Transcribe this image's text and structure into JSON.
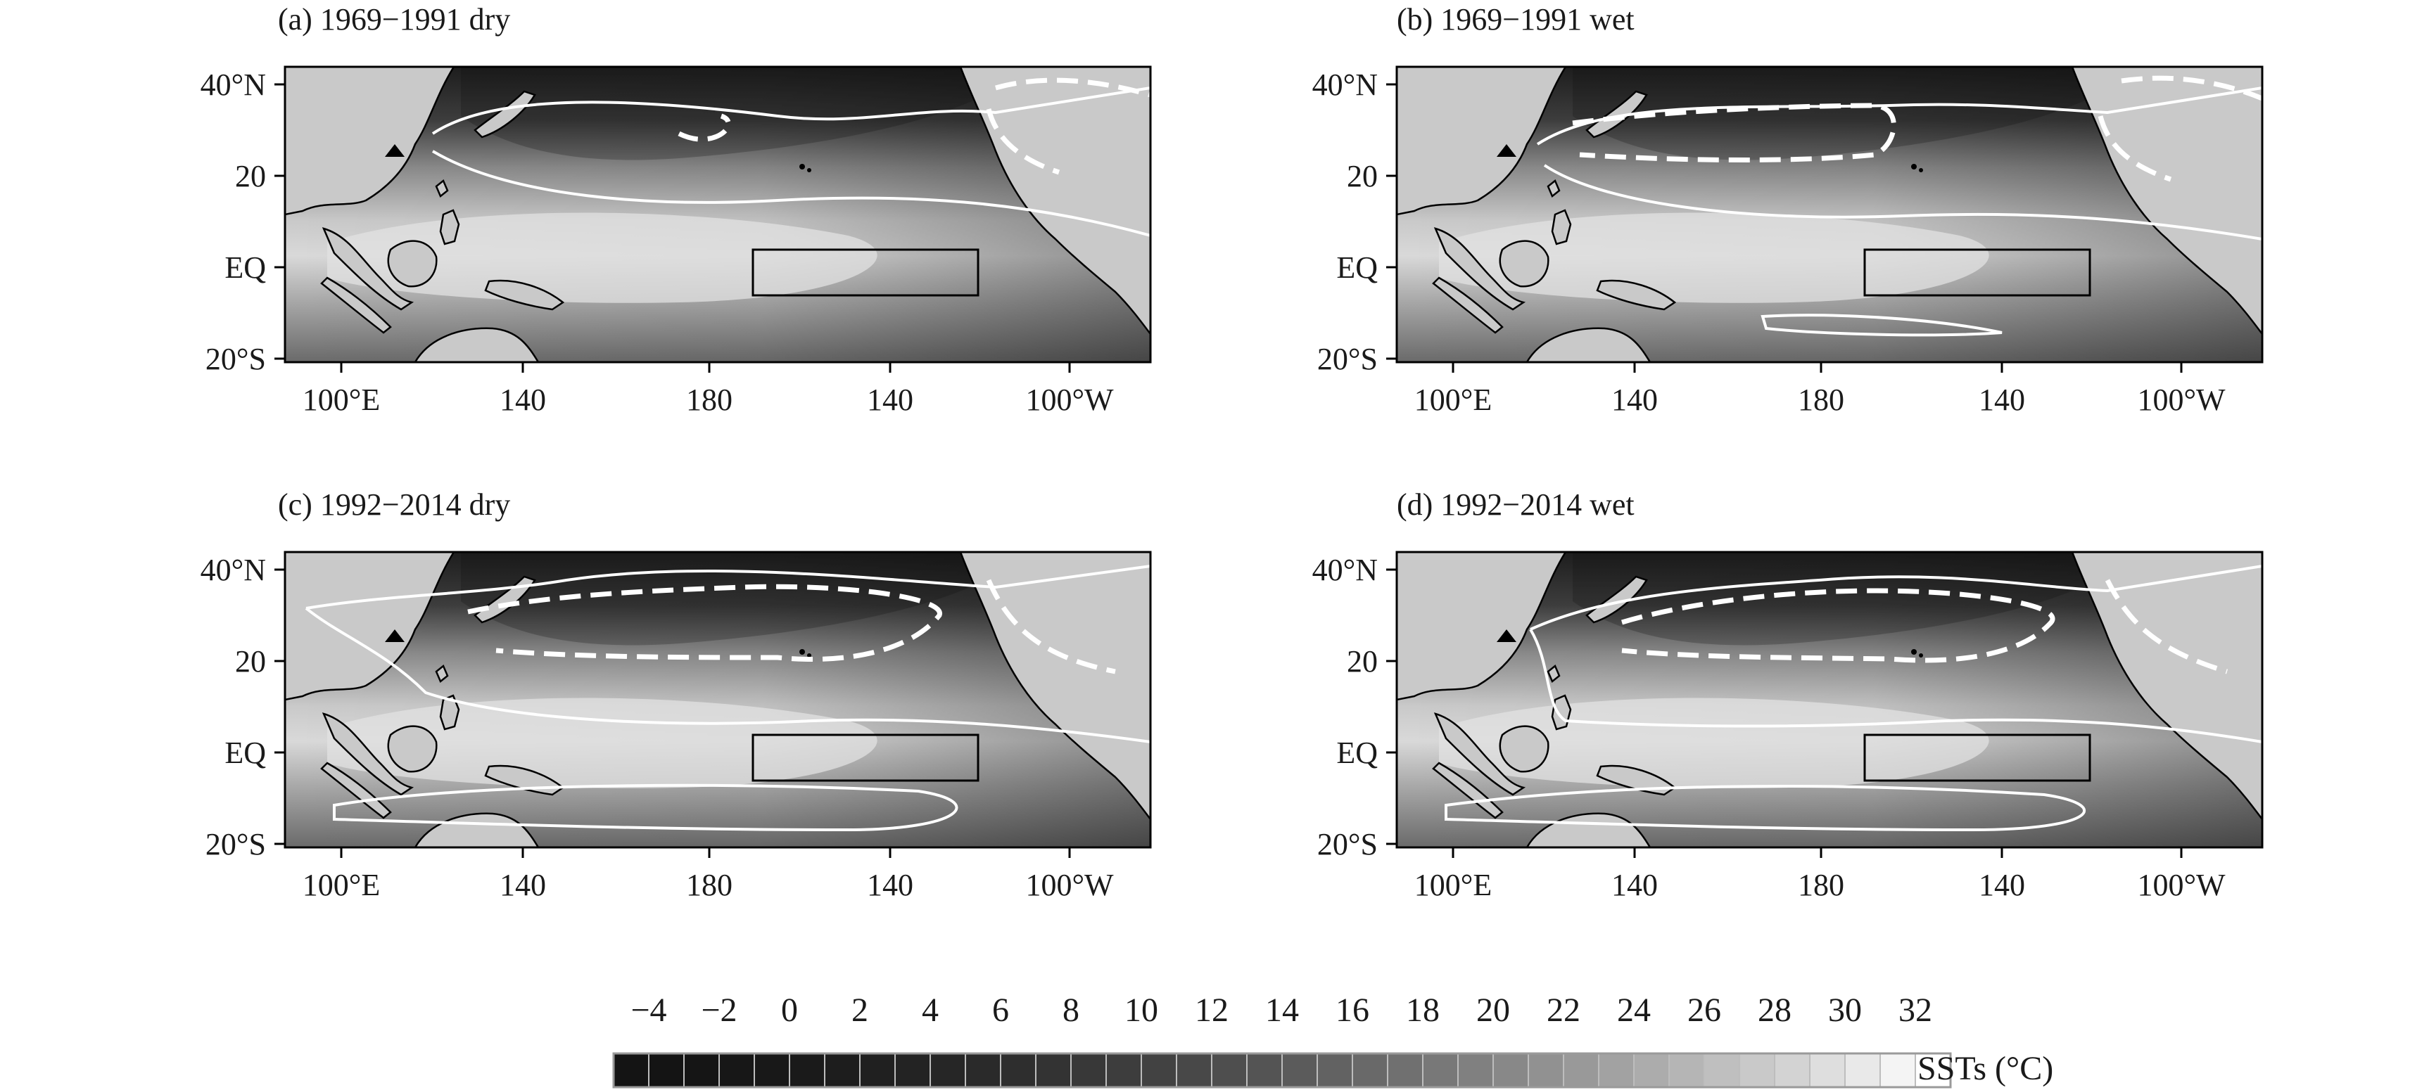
{
  "panels": [
    {
      "id": "a",
      "title": "(a) 1969−1991 dry"
    },
    {
      "id": "b",
      "title": "(b) 1969−1991 wet"
    },
    {
      "id": "c",
      "title": "(c) 1992−2014 dry"
    },
    {
      "id": "d",
      "title": "(d) 1992−2014 wet"
    }
  ],
  "axes": {
    "lat_ticks": [
      "40°N",
      "20",
      "EQ",
      "20°S"
    ],
    "lon_ticks": [
      "100°E",
      "140",
      "180",
      "140",
      "100°W"
    ]
  },
  "colorbar": {
    "label": "SSTs (°C)",
    "tick_labels": [
      "−4",
      "−2",
      "0",
      "2",
      "4",
      "6",
      "8",
      "10",
      "12",
      "14",
      "16",
      "18",
      "20",
      "22",
      "24",
      "26",
      "28",
      "30",
      "32"
    ],
    "min": -4,
    "max": 34,
    "step": 1,
    "colors": {
      "dark": "#141414",
      "light": "#ffffff",
      "land": "#c9c9c9",
      "contour": "#ffffff",
      "outline": "#000000"
    }
  }
}
